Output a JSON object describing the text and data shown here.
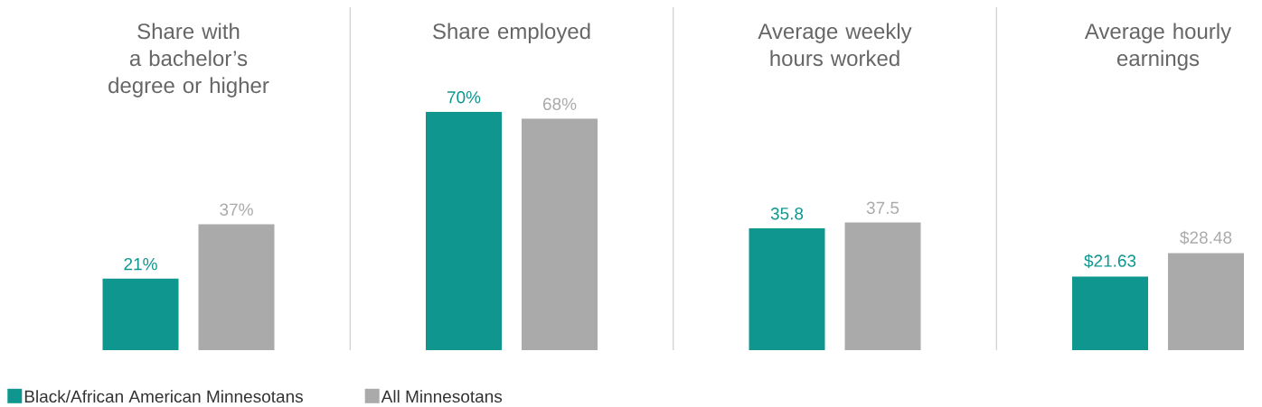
{
  "chart_data": [
    {
      "type": "bar",
      "title": "Share with a bachelor’s degree or higher",
      "categories": [
        null
      ],
      "series": [
        {
          "name": "Black/African American Minnesotans",
          "color": "#0e968f",
          "values": [
            21
          ],
          "value_labels": [
            "21%"
          ]
        },
        {
          "name": "All Minnesotans",
          "color": "#a9aaa9",
          "values": [
            37
          ],
          "value_labels": [
            "37%"
          ]
        }
      ],
      "legend": "bottom right"
    },
    {
      "type": "bar",
      "title": "Share employed",
      "categories": [
        null
      ],
      "series": [
        {
          "color": "#0e968f",
          "values": [
            70
          ],
          "value_labels": [
            "70%"
          ]
        },
        {
          "color": "#a9aaa9",
          "values": [
            68
          ],
          "value_labels": [
            "68%"
          ]
        }
      ]
    },
    {
      "type": "bar",
      "title": "Average weekly hours worked",
      "categories": [
        null
      ],
      "series": [
        {
          "color": "#0e968f",
          "values": [
            35.8
          ],
          "value_labels": [
            "35.8"
          ]
        },
        {
          "color": "#a9aaa9",
          "values": [
            37.5
          ],
          "value_labels": [
            "37.5"
          ]
        }
      ]
    },
    {
      "type": "bar",
      "title": "Average hourly earnings",
      "categories": [
        null
      ],
      "series": [
        {
          "color": "#0e968f",
          "values": [
            21.63
          ],
          "value_labels": [
            "$21.63"
          ]
        },
        {
          "color": "#a9aaa9",
          "values": [
            28.48
          ],
          "value_labels": [
            "$28.48"
          ]
        }
      ]
    }
  ]
}
